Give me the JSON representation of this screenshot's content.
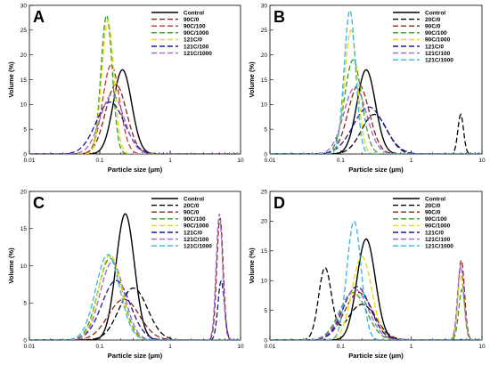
{
  "chart_data": [
    {
      "type": "line",
      "panel_label": "A",
      "xlabel": "Particle size (µm)",
      "ylabel": "Volume (%)",
      "xscale": "log",
      "xlim": [
        0.01,
        10
      ],
      "ylim": [
        0,
        30
      ],
      "xticks": [
        "0.01",
        "0.1",
        "1",
        "10"
      ],
      "yticks": [
        "0",
        "5",
        "10",
        "15",
        "20",
        "25",
        "30"
      ],
      "legend_position": "top-right",
      "series": [
        {
          "name": "Control",
          "color": "#000000",
          "dash": "solid",
          "peak_x": 0.21,
          "peak_y": 17,
          "width": 0.13
        },
        {
          "name": "90C/0",
          "color": "#8b2418",
          "dash": "dashed",
          "peak_x": 0.17,
          "peak_y": 14,
          "width": 0.15
        },
        {
          "name": "90C/100",
          "color": "#c0392b",
          "dash": "dashed",
          "peak_x": 0.145,
          "peak_y": 18,
          "width": 0.12
        },
        {
          "name": "90C/1000",
          "color": "#3a9a2a",
          "dash": "dashed",
          "peak_x": 0.125,
          "peak_y": 28,
          "width": 0.08
        },
        {
          "name": "121C/0",
          "color": "#e6d800",
          "dash": "dashed",
          "peak_x": 0.13,
          "peak_y": 27,
          "width": 0.085
        },
        {
          "name": "121C/100",
          "color": "#1a1a9a",
          "dash": "dashed",
          "peak_x": 0.14,
          "peak_y": 10.5,
          "width": 0.2
        },
        {
          "name": "121C/1000",
          "color": "#9966cc",
          "dash": "dashed",
          "peak_x": 0.15,
          "peak_y": 12,
          "width": 0.17
        }
      ]
    },
    {
      "type": "line",
      "panel_label": "B",
      "xlabel": "Particle size (µm)",
      "ylabel": "Volume (%)",
      "xscale": "log",
      "xlim": [
        0.01,
        10
      ],
      "ylim": [
        0,
        30
      ],
      "xticks": [
        "0.01",
        "0.1",
        "1",
        "10"
      ],
      "yticks": [
        "0",
        "5",
        "10",
        "15",
        "20",
        "25",
        "30"
      ],
      "legend_position": "top-right",
      "series": [
        {
          "name": "Control",
          "color": "#000000",
          "dash": "solid",
          "peak_x": 0.23,
          "peak_y": 17,
          "width": 0.13
        },
        {
          "name": "20C/0",
          "color": "#000000",
          "dash": "dashed",
          "peak_x": 0.3,
          "peak_y": 8,
          "width": 0.18,
          "peak2_x": 5,
          "peak2_y": 8,
          "width2": 0.04
        },
        {
          "name": "90C/0",
          "color": "#8b2418",
          "dash": "dashed",
          "peak_x": 0.18,
          "peak_y": 14,
          "width": 0.15
        },
        {
          "name": "90C/100",
          "color": "#3a9a2a",
          "dash": "dashed",
          "peak_x": 0.15,
          "peak_y": 19,
          "width": 0.12
        },
        {
          "name": "90C/1000",
          "color": "#e6d800",
          "dash": "dashed",
          "peak_x": 0.14,
          "peak_y": 25,
          "width": 0.09
        },
        {
          "name": "121C/0",
          "color": "#1a1a9a",
          "dash": "dashed",
          "peak_x": 0.25,
          "peak_y": 9.5,
          "width": 0.22
        },
        {
          "name": "121C/100",
          "color": "#9966cc",
          "dash": "dashed",
          "peak_x": 0.16,
          "peak_y": 13.5,
          "width": 0.16
        },
        {
          "name": "121C/1000",
          "color": "#33b5e5",
          "dash": "dashed",
          "peak_x": 0.135,
          "peak_y": 29,
          "width": 0.08
        }
      ]
    },
    {
      "type": "line",
      "panel_label": "C",
      "xlabel": "Particle size (µm)",
      "ylabel": "Volume (%)",
      "xscale": "log",
      "xlim": [
        0.01,
        10
      ],
      "ylim": [
        0,
        20
      ],
      "xticks": [
        "0.01",
        "0.1",
        "1",
        "10"
      ],
      "yticks": [
        "0",
        "5",
        "10",
        "15",
        "20"
      ],
      "legend_position": "top-right",
      "series": [
        {
          "name": "Control",
          "color": "#000000",
          "dash": "solid",
          "peak_x": 0.23,
          "peak_y": 17,
          "width": 0.13
        },
        {
          "name": "20C/0",
          "color": "#000000",
          "dash": "dashed",
          "peak_x": 0.3,
          "peak_y": 7,
          "width": 0.2
        },
        {
          "name": "90C/0",
          "color": "#8b2418",
          "dash": "dashed",
          "peak_x": 0.22,
          "peak_y": 5.5,
          "width": 0.22,
          "peak2_x": 5.1,
          "peak2_y": 16.5,
          "width2": 0.045
        },
        {
          "name": "90C/100",
          "color": "#3a9a2a",
          "dash": "dashed",
          "peak_x": 0.14,
          "peak_y": 11,
          "width": 0.17
        },
        {
          "name": "90C/1000",
          "color": "#e6d800",
          "dash": "dashed",
          "peak_x": 0.14,
          "peak_y": 11.5,
          "width": 0.16
        },
        {
          "name": "121C/0",
          "color": "#1a1a9a",
          "dash": "dashed",
          "peak_x": 0.17,
          "peak_y": 8,
          "width": 0.2,
          "peak2_x": 5.3,
          "peak2_y": 8,
          "width2": 0.045
        },
        {
          "name": "121C/100",
          "color": "#9966cc",
          "dash": "dashed",
          "peak_x": 0.15,
          "peak_y": 10.5,
          "width": 0.17,
          "peak2_x": 5.0,
          "peak2_y": 17,
          "width2": 0.045
        },
        {
          "name": "121C/1000",
          "color": "#33b5e5",
          "dash": "dashed",
          "peak_x": 0.13,
          "peak_y": 11.5,
          "width": 0.17
        }
      ]
    },
    {
      "type": "line",
      "panel_label": "D",
      "xlabel": "Particle size (µm)",
      "ylabel": "Volume (%)",
      "xscale": "log",
      "xlim": [
        0.01,
        10
      ],
      "ylim": [
        0,
        25
      ],
      "xticks": [
        "0.01",
        "0.1",
        "1",
        "10"
      ],
      "yticks": [
        "0",
        "5",
        "10",
        "15",
        "20",
        "25"
      ],
      "legend_position": "top-right",
      "series": [
        {
          "name": "Control",
          "color": "#000000",
          "dash": "solid",
          "peak_x": 0.23,
          "peak_y": 17,
          "width": 0.13
        },
        {
          "name": "20C/0",
          "color": "#000000",
          "dash": "dashed",
          "peak_x": 0.06,
          "peak_y": 12,
          "width": 0.09,
          "peak2_x": 0.2,
          "peak2_y": 6,
          "width2": 0.2
        },
        {
          "name": "90C/0",
          "color": "#8b2418",
          "dash": "dashed",
          "peak_x": 0.18,
          "peak_y": 8,
          "width": 0.2,
          "peak2_x": 5.1,
          "peak2_y": 13.5,
          "width2": 0.045
        },
        {
          "name": "90C/100",
          "color": "#3a9a2a",
          "dash": "dashed",
          "peak_x": 0.15,
          "peak_y": 8,
          "width": 0.19,
          "peak2_x": 5.2,
          "peak2_y": 8.5,
          "width2": 0.045
        },
        {
          "name": "90C/1000",
          "color": "#e6d800",
          "dash": "dashed",
          "peak_x": 0.2,
          "peak_y": 14,
          "width": 0.14,
          "peak2_x": 5.0,
          "peak2_y": 11,
          "width2": 0.045
        },
        {
          "name": "121C/0",
          "color": "#1a1a9a",
          "dash": "dashed",
          "peak_x": 0.17,
          "peak_y": 9,
          "width": 0.19
        },
        {
          "name": "121C/100",
          "color": "#9966cc",
          "dash": "dashed",
          "peak_x": 0.16,
          "peak_y": 8.5,
          "width": 0.19,
          "peak2_x": 5.0,
          "peak2_y": 12.5,
          "width2": 0.045
        },
        {
          "name": "121C/1000",
          "color": "#33b5e5",
          "dash": "dashed",
          "peak_x": 0.155,
          "peak_y": 20,
          "width": 0.1
        }
      ]
    }
  ]
}
